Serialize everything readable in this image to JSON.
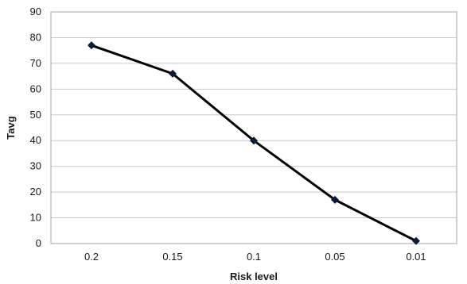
{
  "chart_data": {
    "type": "line",
    "title": "",
    "xlabel": "Risk level",
    "ylabel": "Tavg",
    "categories": [
      "0.2",
      "0.15",
      "0.1",
      "0.05",
      "0.01"
    ],
    "series": [
      {
        "values": [
          77,
          66,
          40,
          17,
          1
        ]
      }
    ],
    "ylim": [
      0,
      90
    ],
    "yticks": [
      "0",
      "10",
      "20",
      "30",
      "40",
      "50",
      "60",
      "70",
      "80",
      "90"
    ],
    "grid": true,
    "legend": "none",
    "line_color": "#000000",
    "marker_color": "#0a1a3a",
    "marker": "diamond"
  }
}
